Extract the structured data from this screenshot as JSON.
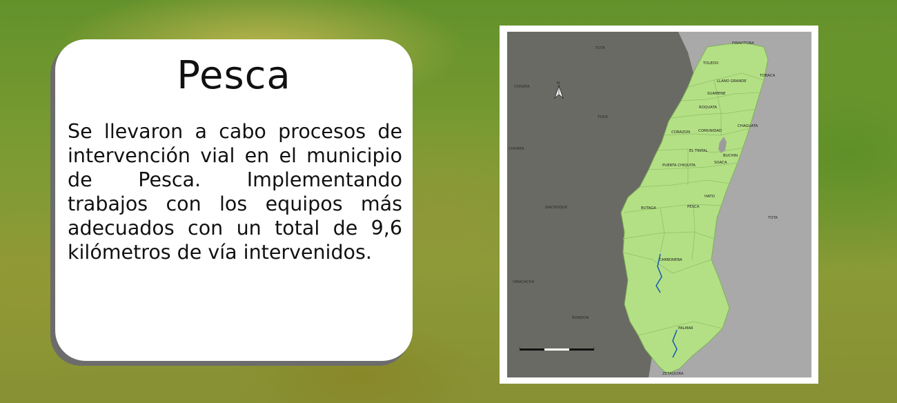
{
  "card": {
    "title": "Pesca",
    "body": "Se llevaron a cabo procesos de intervención vial en el municipio de Pesca. Implementando trabajos con los equipos más adecuados con un total de 9,6 kilómetros de vía intervenidos."
  },
  "map": {
    "north_symbol": "N",
    "neighbor_labels": [
      "FIRAVITOBA",
      "TUTA",
      "CHIVATA",
      "TOCA",
      "CHIVATA",
      "SIACHOQUE",
      "VIRACACHA",
      "RONDON",
      "TOTA",
      "ZETAQUIRA"
    ],
    "vereda_labels": [
      "TOLEDO",
      "LLANO GRANDE",
      "TOBACA",
      "SUAMENE",
      "ROQUATA",
      "CHAGUATA",
      "CORAZON",
      "COMUNIDAD",
      "EL TINTAL",
      "BUCHIN",
      "SOACA",
      "PUERTA CHIQUITA",
      "HATO",
      "BUTAGA",
      "PESCA",
      "CARBONERA",
      "PALMAR"
    ],
    "colors": {
      "municipality_fill": "#b4e085",
      "west_fill": "#6a6a64",
      "east_fill": "#a9a9a9",
      "river": "#1a5fb4"
    }
  },
  "colors": {
    "card_bg": "#ffffff",
    "card_shadow": "#6c6c6c"
  }
}
